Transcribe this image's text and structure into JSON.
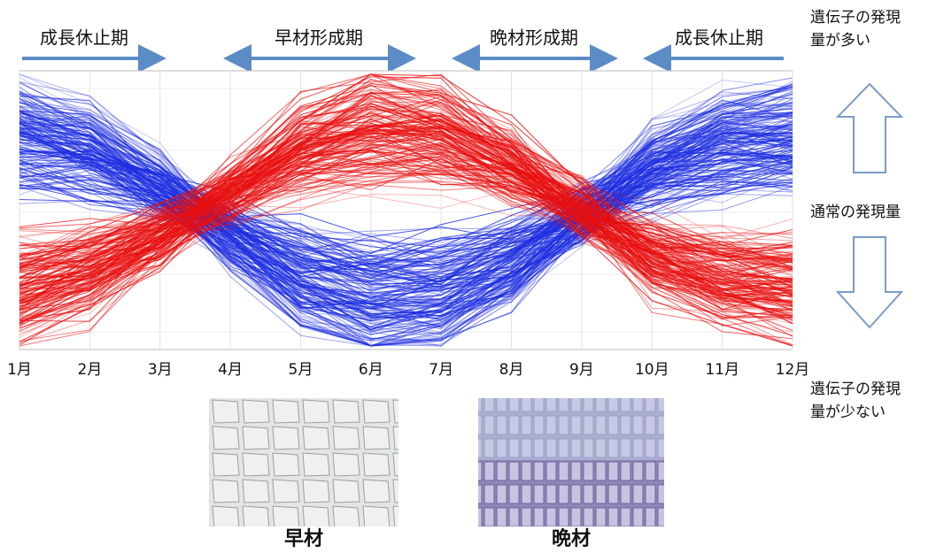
{
  "phases": [
    "成長休止期",
    "早材形成期",
    "晩材形成期",
    "成長休止期"
  ],
  "months": [
    "1月",
    "2月",
    "3月",
    "4月",
    "5月",
    "6月",
    "7月",
    "8月",
    "9月",
    "10月",
    "11月",
    "12月"
  ],
  "side_labels": {
    "high": [
      "遺伝子の発現",
      "量が多い"
    ],
    "normal": "通常の発現量",
    "low": [
      "遺伝子の発現",
      "量が少ない"
    ]
  },
  "captions": [
    "早材",
    "晩材"
  ]
}
